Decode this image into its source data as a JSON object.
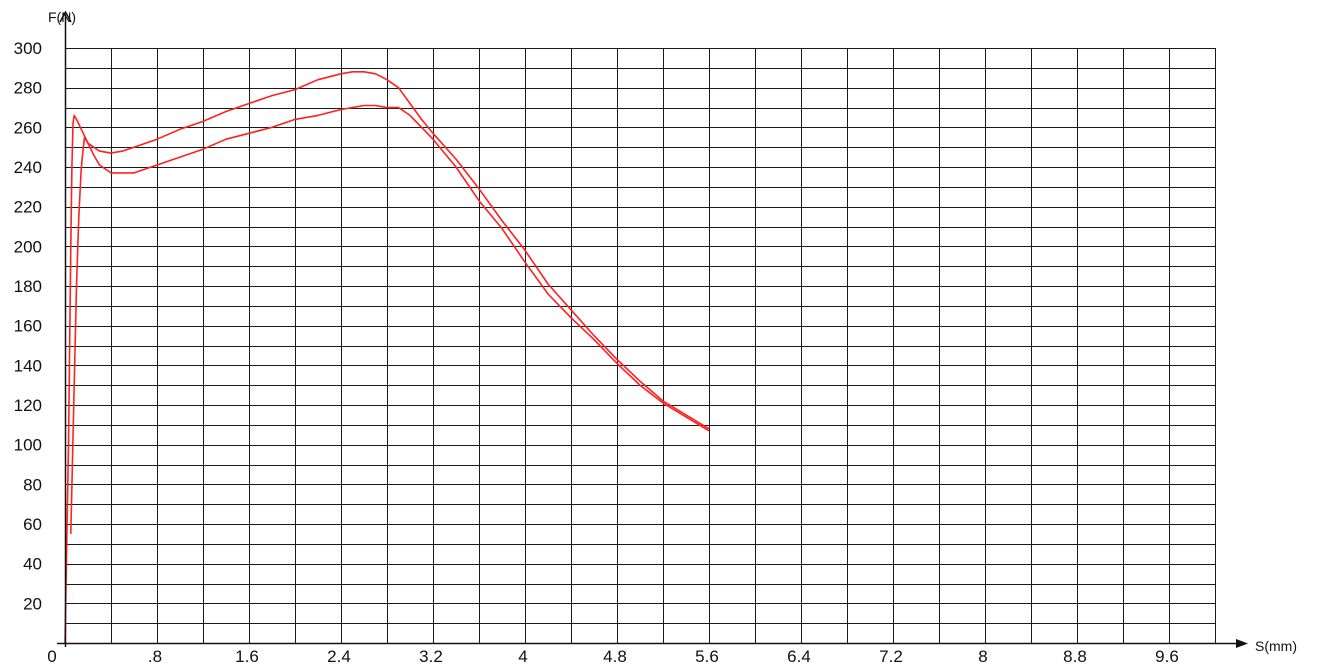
{
  "chart_data": {
    "type": "line",
    "title": "",
    "xlabel": "S(mm)",
    "ylabel": "F(N)",
    "xlim": [
      0,
      10
    ],
    "ylim": [
      0,
      300
    ],
    "grid": true,
    "x_ticks": [
      {
        "value": 0,
        "label": "0"
      },
      {
        "value": 0.8,
        "label": ".8"
      },
      {
        "value": 1.6,
        "label": "1.6"
      },
      {
        "value": 2.4,
        "label": "2.4"
      },
      {
        "value": 3.2,
        "label": "3.2"
      },
      {
        "value": 4.0,
        "label": "4"
      },
      {
        "value": 4.8,
        "label": "4.8"
      },
      {
        "value": 5.6,
        "label": "5.6"
      },
      {
        "value": 6.4,
        "label": "6.4"
      },
      {
        "value": 7.2,
        "label": "7.2"
      },
      {
        "value": 8.0,
        "label": "8"
      },
      {
        "value": 8.8,
        "label": "8.8"
      },
      {
        "value": 9.6,
        "label": "9.6"
      }
    ],
    "y_ticks": [
      20,
      40,
      60,
      80,
      100,
      120,
      140,
      160,
      180,
      200,
      220,
      240,
      260,
      280,
      300
    ],
    "line_color": "#ff2020",
    "series": [
      {
        "x": [
          0,
          0.03,
          0.05,
          0.06,
          0.07,
          0.08,
          0.1,
          0.15,
          0.2,
          0.3,
          0.4,
          0.5,
          0.6,
          0.8,
          1.0,
          1.2,
          1.4,
          1.6,
          1.8,
          2.0,
          2.2,
          2.4,
          2.5,
          2.6,
          2.7,
          2.8,
          2.9,
          3.0,
          3.1,
          3.2,
          3.4,
          3.6,
          3.8,
          4.0,
          4.2,
          4.4,
          4.6,
          4.8,
          5.0,
          5.2,
          5.4,
          5.6
        ],
        "y": [
          0,
          100,
          200,
          240,
          262,
          266,
          264,
          258,
          252,
          248,
          247,
          248,
          250,
          254,
          259,
          263,
          268,
          272,
          276,
          279,
          284,
          287,
          288,
          288,
          287,
          284,
          280,
          272,
          264,
          257,
          244,
          229,
          213,
          198,
          181,
          168,
          155,
          143,
          132,
          122,
          115,
          108
        ]
      },
      {
        "x": [
          0.05,
          0.08,
          0.1,
          0.12,
          0.14,
          0.15,
          0.17,
          0.2,
          0.25,
          0.3,
          0.4,
          0.5,
          0.6,
          0.8,
          1.0,
          1.2,
          1.4,
          1.6,
          1.8,
          2.0,
          2.2,
          2.4,
          2.5,
          2.6,
          2.7,
          2.8,
          2.9,
          3.0,
          3.2,
          3.4,
          3.6,
          3.8,
          4.0,
          4.2,
          4.4,
          4.6,
          4.8,
          5.0,
          5.2,
          5.4,
          5.6
        ],
        "y": [
          55,
          130,
          180,
          215,
          238,
          245,
          255,
          252,
          246,
          241,
          237,
          237,
          237,
          241,
          245,
          249,
          254,
          257,
          260,
          264,
          266,
          269,
          270,
          271,
          271,
          270,
          270,
          266,
          254,
          240,
          223,
          209,
          192,
          176,
          164,
          153,
          141,
          130,
          121,
          114,
          107
        ]
      }
    ]
  }
}
